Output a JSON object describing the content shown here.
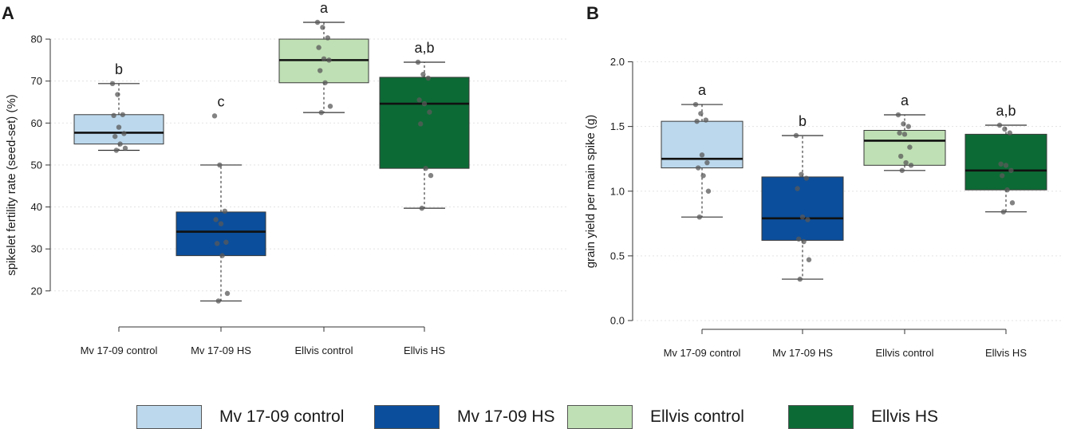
{
  "colors": {
    "mv_control": "#bcd8ec",
    "mv_hs": "#0b4e9b",
    "ellvis_control": "#bfe0b4",
    "ellvis_hs": "#0c6b35"
  },
  "legend": [
    {
      "label": "Mv 17-09 control",
      "color_key": "mv_control"
    },
    {
      "label": "Mv 17-09 HS",
      "color_key": "mv_hs"
    },
    {
      "label": "Ellvis control",
      "color_key": "ellvis_control"
    },
    {
      "label": "Ellvis HS",
      "color_key": "ellvis_hs"
    }
  ],
  "chart_data": [
    {
      "panel": "A",
      "type": "boxplot",
      "title": "",
      "xlabel": "",
      "ylabel": "spikelet fertility rate (seed-set) (%)",
      "ylim": [
        17,
        84
      ],
      "yticks": [
        20,
        30,
        40,
        50,
        60,
        70,
        80
      ],
      "categories": [
        "Mv 17-09 control",
        "Mv 17-09 HS",
        "Ellvis control",
        "Ellvis HS"
      ],
      "groups": [
        {
          "name": "Mv 17-09 control",
          "color_key": "mv_control",
          "q1": 55.0,
          "median": 57.7,
          "q3": 62.0,
          "whisker_low": 53.5,
          "whisker_high": 69.4,
          "letter": "b",
          "points": [
            69.4,
            66.8,
            62.0,
            61.8,
            59.0,
            57.5,
            56.8,
            55.0,
            54.0,
            53.5
          ]
        },
        {
          "name": "Mv 17-09 HS",
          "color_key": "mv_hs",
          "q1": 28.4,
          "median": 34.1,
          "q3": 38.8,
          "whisker_low": 17.6,
          "whisker_high": 50.0,
          "letter": "c",
          "points": [
            61.7,
            50.0,
            39.0,
            37.0,
            36.0,
            31.6,
            31.3,
            28.4,
            19.4,
            17.6
          ]
        },
        {
          "name": "Ellvis control",
          "color_key": "ellvis_control",
          "q1": 69.6,
          "median": 75.0,
          "q3": 80.0,
          "whisker_low": 62.5,
          "whisker_high": 84.0,
          "letter": "a",
          "points": [
            84.0,
            82.8,
            80.3,
            78.0,
            75.3,
            75.0,
            72.5,
            69.6,
            64.0,
            62.5
          ]
        },
        {
          "name": "Ellvis HS",
          "color_key": "ellvis_hs",
          "q1": 49.2,
          "median": 64.6,
          "q3": 70.9,
          "whisker_low": 39.7,
          "whisker_high": 74.5,
          "letter": "a,b",
          "points": [
            74.5,
            71.6,
            70.7,
            65.5,
            64.6,
            62.6,
            59.8,
            49.2,
            47.5,
            39.7
          ]
        }
      ]
    },
    {
      "panel": "B",
      "type": "boxplot",
      "title": "",
      "xlabel": "",
      "ylabel": "grain yield per main spike (g)",
      "ylim": [
        0,
        2.0
      ],
      "yticks": [
        0.0,
        0.5,
        1.0,
        1.5,
        2.0
      ],
      "categories": [
        "Mv 17-09 control",
        "Mv 17-09 HS",
        "Ellvis control",
        "Ellvis HS"
      ],
      "groups": [
        {
          "name": "Mv 17-09 control",
          "color_key": "mv_control",
          "q1": 1.18,
          "median": 1.25,
          "q3": 1.54,
          "whisker_low": 0.8,
          "whisker_high": 1.67,
          "letter": "a",
          "points": [
            1.67,
            1.6,
            1.55,
            1.54,
            1.28,
            1.22,
            1.18,
            1.12,
            1.0,
            0.8
          ]
        },
        {
          "name": "Mv 17-09 HS",
          "color_key": "mv_hs",
          "q1": 0.62,
          "median": 0.79,
          "q3": 1.11,
          "whisker_low": 0.32,
          "whisker_high": 1.43,
          "letter": "b",
          "points": [
            1.43,
            1.13,
            1.1,
            1.02,
            0.8,
            0.78,
            0.63,
            0.61,
            0.47,
            0.32
          ]
        },
        {
          "name": "Ellvis control",
          "color_key": "ellvis_control",
          "q1": 1.2,
          "median": 1.39,
          "q3": 1.47,
          "whisker_low": 1.16,
          "whisker_high": 1.59,
          "letter": "a",
          "points": [
            1.59,
            1.52,
            1.5,
            1.45,
            1.44,
            1.34,
            1.27,
            1.22,
            1.2,
            1.16
          ]
        },
        {
          "name": "Ellvis HS",
          "color_key": "ellvis_hs",
          "q1": 1.01,
          "median": 1.16,
          "q3": 1.44,
          "whisker_low": 0.84,
          "whisker_high": 1.51,
          "letter": "a,b",
          "points": [
            1.51,
            1.48,
            1.45,
            1.21,
            1.2,
            1.16,
            1.12,
            1.01,
            0.91,
            0.84
          ]
        }
      ]
    }
  ]
}
